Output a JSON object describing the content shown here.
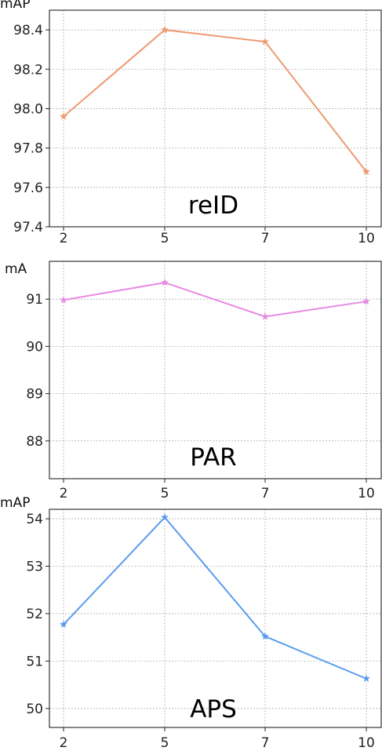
{
  "chart_data": [
    {
      "type": "line",
      "annotation": "reID",
      "ylabel": "mAP",
      "x": [
        2,
        5,
        7,
        10
      ],
      "xticks": [
        "2",
        "5",
        "7",
        "10"
      ],
      "ylim": [
        97.4,
        98.5
      ],
      "yticks": [
        "97.4",
        "97.6",
        "97.8",
        "98.0",
        "98.2",
        "98.4"
      ],
      "grid": true,
      "color": "#ee9a70",
      "marker": "star",
      "series": [
        {
          "values": [
            97.96,
            98.4,
            98.34,
            97.68
          ]
        }
      ]
    },
    {
      "type": "line",
      "annotation": "PAR",
      "ylabel": "mA",
      "x": [
        2,
        5,
        7,
        10
      ],
      "xticks": [
        "2",
        "5",
        "7",
        "10"
      ],
      "ylim": [
        87.2,
        91.8
      ],
      "yticks": [
        "88",
        "89",
        "90",
        "91"
      ],
      "grid": true,
      "color": "#e78ae4",
      "marker": "star",
      "series": [
        {
          "values": [
            90.98,
            91.35,
            90.63,
            90.95
          ]
        }
      ]
    },
    {
      "type": "line",
      "annotation": "APS",
      "ylabel": "mAP",
      "x": [
        2,
        5,
        7,
        10
      ],
      "xticks": [
        "2",
        "5",
        "7",
        "10"
      ],
      "ylim": [
        49.6,
        54.2
      ],
      "yticks": [
        "50",
        "51",
        "52",
        "53",
        "54"
      ],
      "grid": true,
      "color": "#5a9cf0",
      "marker": "star",
      "series": [
        {
          "values": [
            51.77,
            54.03,
            51.52,
            50.63
          ]
        }
      ]
    }
  ]
}
